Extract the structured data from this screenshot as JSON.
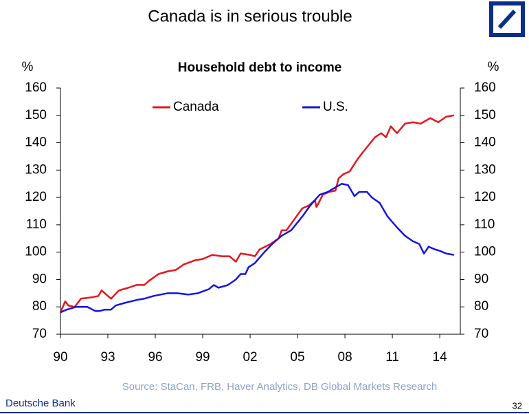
{
  "chart_data": {
    "type": "line",
    "title": "Canada is in serious trouble",
    "subtitle": "Household debt to income",
    "y_label": "%",
    "y2_label": "%",
    "source": "Source: StaCan, FRB, Haver Analytics, DB Global Markets Research",
    "footer": "Deutsche Bank",
    "page_number": "32",
    "xlim": [
      1990,
      2015.3
    ],
    "xticks": [
      {
        "value": 1990,
        "label": "90"
      },
      {
        "value": 1993,
        "label": "93"
      },
      {
        "value": 1996,
        "label": "96"
      },
      {
        "value": 1999,
        "label": "99"
      },
      {
        "value": 2002,
        "label": "02"
      },
      {
        "value": 2005,
        "label": "05"
      },
      {
        "value": 2008,
        "label": "08"
      },
      {
        "value": 2011,
        "label": "11"
      },
      {
        "value": 2014,
        "label": "14"
      }
    ],
    "ylim": [
      70,
      160
    ],
    "yticks": [
      70,
      80,
      90,
      100,
      110,
      120,
      130,
      140,
      150,
      160
    ],
    "y2lim": [
      70,
      160
    ],
    "y2ticks": [
      70,
      80,
      90,
      100,
      110,
      120,
      130,
      140,
      150,
      160
    ],
    "series": [
      {
        "name": "Canada",
        "color": "#e8141c",
        "x": [
          1990,
          1990.3,
          1990.5,
          1990.9,
          1991.3,
          1992.0,
          1992.4,
          1992.6,
          1993.2,
          1993.7,
          1994.3,
          1994.8,
          1995.3,
          1995.6,
          1996.2,
          1996.8,
          1997.3,
          1997.8,
          1998.5,
          1999.0,
          1999.6,
          2000.2,
          2000.7,
          2001.1,
          2001.4,
          2002.0,
          2002.3,
          2002.6,
          2003.3,
          2003.8,
          2004.0,
          2004.3,
          2004.8,
          2005.3,
          2005.7,
          2006.1,
          2006.2,
          2006.6,
          2007.0,
          2007.4,
          2007.6,
          2007.9,
          2008.3,
          2008.8,
          2009.2,
          2009.9,
          2010.3,
          2010.6,
          2010.9,
          2011.3,
          2011.8,
          2012.3,
          2012.8,
          2013.4,
          2013.9,
          2014.4,
          2014.9
        ],
        "values": [
          78,
          82,
          80.5,
          80,
          83,
          83.5,
          84,
          86,
          83,
          86,
          87,
          88,
          88,
          89.5,
          92,
          93,
          93.5,
          95.5,
          97,
          97.5,
          99,
          98.5,
          98.5,
          96.5,
          99.5,
          99,
          98.5,
          101,
          103,
          105,
          108,
          108,
          112,
          116,
          117,
          119,
          116.5,
          121,
          122,
          122.5,
          127,
          128.5,
          129.5,
          134,
          137,
          142,
          143.5,
          142,
          146,
          143.5,
          147,
          147.5,
          147,
          149,
          147.5,
          149.5,
          150
        ]
      },
      {
        "name": "U.S.",
        "color": "#1414e6",
        "x": [
          1990,
          1990.4,
          1991.0,
          1991.7,
          1992.2,
          1992.5,
          1992.8,
          1993.2,
          1993.5,
          1994.1,
          1994.8,
          1995.3,
          1995.9,
          1996.8,
          1997.4,
          1998.1,
          1998.7,
          1999.4,
          1999.7,
          2000.0,
          2000.6,
          2001.1,
          2001.4,
          2001.7,
          2001.9,
          2002.3,
          2002.9,
          2003.4,
          2004.0,
          2004.6,
          2005.3,
          2005.8,
          2006.4,
          2006.9,
          2007.5,
          2007.8,
          2008.2,
          2008.6,
          2008.9,
          2009.4,
          2009.7,
          2010.2,
          2010.7,
          2011.3,
          2011.8,
          2012.3,
          2012.7,
          2013.0,
          2013.3,
          2013.7,
          2014.0,
          2014.4,
          2014.9
        ],
        "values": [
          78,
          79,
          80,
          80,
          78.5,
          78.5,
          79,
          79,
          80.5,
          81.5,
          82.5,
          83,
          84,
          85,
          85,
          84.5,
          85,
          86.5,
          88,
          87,
          88,
          90,
          92,
          92,
          94.5,
          96,
          100,
          103,
          106,
          108,
          113,
          117,
          121,
          122,
          124,
          125,
          124.5,
          120.5,
          122,
          122,
          120,
          118,
          113,
          109,
          106,
          104,
          103,
          99.5,
          102,
          101,
          100.5,
          99.5,
          99
        ]
      }
    ]
  }
}
